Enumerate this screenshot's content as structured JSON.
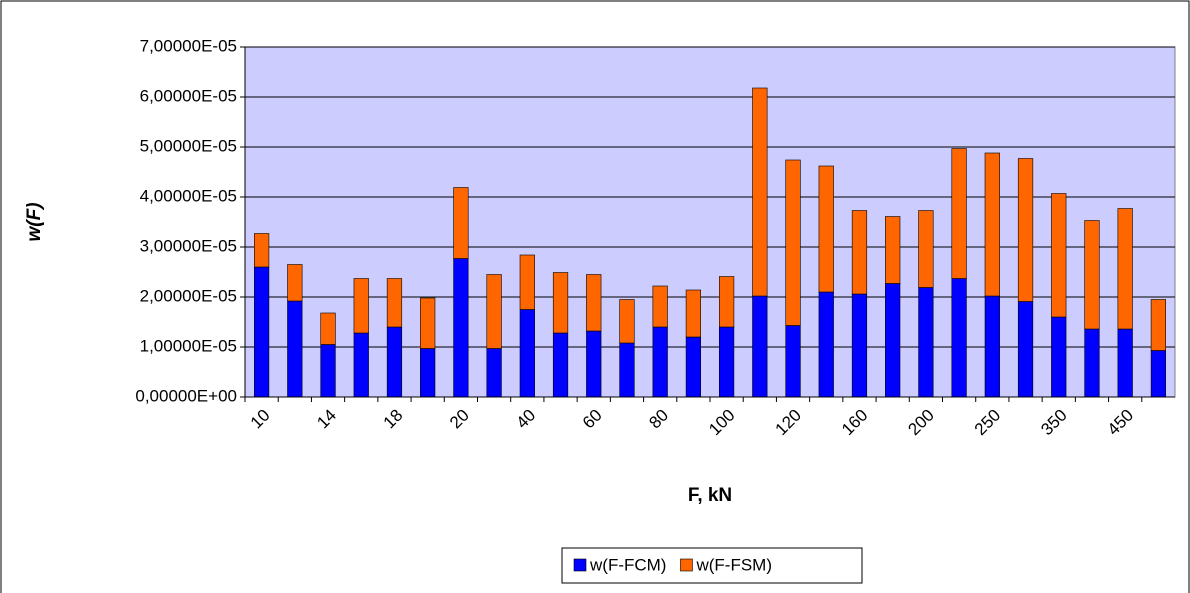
{
  "chart_data": {
    "type": "bar",
    "stacked": true,
    "ylabel": "w(F)",
    "xlabel": "F, kN",
    "categories": [
      "10",
      null,
      "14",
      null,
      "18",
      null,
      "20",
      null,
      "40",
      null,
      "60",
      null,
      "80",
      null,
      "100",
      null,
      "120",
      null,
      "160",
      null,
      "200",
      null,
      "250",
      null,
      "350",
      null,
      "450",
      null
    ],
    "series": [
      {
        "name": "w(F-FCM)",
        "color": "#0000ff",
        "values": [
          2.6e-05,
          1.92e-05,
          1.05e-05,
          1.28e-05,
          1.4e-05,
          9.7e-06,
          2.77e-05,
          9.7e-06,
          1.75e-05,
          1.28e-05,
          1.32e-05,
          1.08e-05,
          1.4e-05,
          1.2e-05,
          1.4e-05,
          2.02e-05,
          1.43e-05,
          2.1e-05,
          2.06e-05,
          2.27e-05,
          2.19e-05,
          2.37e-05,
          2.02e-05,
          1.91e-05,
          1.6e-05,
          1.36e-05,
          1.36e-05,
          9.3e-06
        ]
      },
      {
        "name": "w(F-FSM)",
        "color": "#ff6600",
        "values": [
          6.7e-06,
          7.3e-06,
          6.3e-06,
          1.09e-05,
          9.7e-06,
          1.01e-05,
          1.42e-05,
          1.48e-05,
          1.09e-05,
          1.21e-05,
          1.13e-05,
          8.7e-06,
          8.2e-06,
          9.4e-06,
          1.01e-05,
          4.16e-05,
          3.31e-05,
          2.52e-05,
          1.67e-05,
          1.34e-05,
          1.54e-05,
          2.6e-05,
          2.86e-05,
          2.86e-05,
          2.47e-05,
          2.17e-05,
          2.41e-05,
          1.02e-05
        ]
      }
    ],
    "ylim": [
      0,
      7e-05
    ],
    "yticks": [
      {
        "value": 0,
        "label": "0,00000E+00"
      },
      {
        "value": 1e-05,
        "label": "1,00000E-05"
      },
      {
        "value": 2e-05,
        "label": "2,00000E-05"
      },
      {
        "value": 3e-05,
        "label": "3,00000E-05"
      },
      {
        "value": 4e-05,
        "label": "4,00000E-05"
      },
      {
        "value": 5e-05,
        "label": "5,00000E-05"
      },
      {
        "value": 6e-05,
        "label": "6,00000E-05"
      },
      {
        "value": 7e-05,
        "label": "7,00000E-05"
      }
    ],
    "grid": true,
    "legend": "bottom",
    "plot_background": "#ccccff"
  }
}
